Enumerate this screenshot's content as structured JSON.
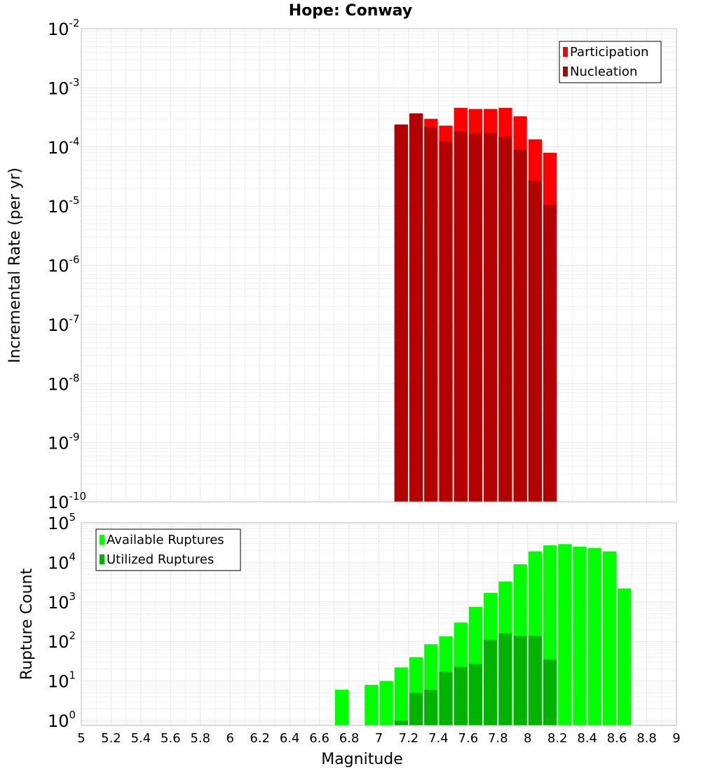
{
  "chart_data": [
    {
      "type": "bar",
      "title": "Hope: Conway",
      "xlabel": "",
      "ylabel": "Incremental Rate (per yr)",
      "y_scale": "log",
      "ylim": [
        1e-10,
        0.01
      ],
      "xlim": [
        5,
        9
      ],
      "grid": true,
      "legend_position": "top-right",
      "bar_width": 0.1,
      "colors": {
        "Participation": "#ff0000",
        "Nucleation": "#b30000"
      },
      "series": [
        {
          "name": "Participation",
          "x": [
            7.15,
            7.25,
            7.35,
            7.45,
            7.55,
            7.65,
            7.75,
            7.85,
            7.95,
            8.05,
            8.15
          ],
          "values": [
            0.00024,
            0.00037,
            0.0003,
            0.00023,
            0.00046,
            0.00044,
            0.00044,
            0.00046,
            0.00033,
            0.000135,
            8e-05
          ]
        },
        {
          "name": "Nucleation",
          "x": [
            7.15,
            7.25,
            7.35,
            7.45,
            7.55,
            7.65,
            7.75,
            7.85,
            7.95,
            8.05,
            8.15
          ],
          "values": [
            0.00024,
            0.00037,
            0.00022,
            0.000125,
            0.000185,
            0.00017,
            0.000175,
            0.00015,
            9e-05,
            2.7e-05,
            1.05e-05
          ]
        }
      ]
    },
    {
      "type": "bar",
      "title": "",
      "xlabel": "Magnitude",
      "ylabel": "Rupture Count",
      "y_scale": "log",
      "ylim": [
        0.75,
        100000
      ],
      "xlim": [
        5,
        9
      ],
      "xticks": [
        "5",
        "5.2",
        "5.4",
        "5.6",
        "5.8",
        "6",
        "6.2",
        "6.4",
        "6.6",
        "6.8",
        "7",
        "7.2",
        "7.4",
        "7.6",
        "7.8",
        "8",
        "8.2",
        "8.4",
        "8.6",
        "8.8",
        "9"
      ],
      "grid": true,
      "legend_position": "top-left",
      "bar_width": 0.1,
      "colors": {
        "Available Ruptures": "#00ff00",
        "Utilized Ruptures": "#00b300"
      },
      "series": [
        {
          "name": "Available Ruptures",
          "x": [
            6.75,
            6.95,
            7.05,
            7.15,
            7.25,
            7.35,
            7.45,
            7.55,
            7.65,
            7.75,
            7.85,
            7.95,
            8.05,
            8.15,
            8.25,
            8.35,
            8.45,
            8.55,
            8.65
          ],
          "values": [
            6,
            8,
            10,
            22,
            40,
            85,
            135,
            300,
            750,
            1700,
            3300,
            9000,
            19000,
            27000,
            29000,
            25000,
            23000,
            19000,
            2200
          ]
        },
        {
          "name": "Utilized Ruptures",
          "x": [
            7.15,
            7.25,
            7.35,
            7.45,
            7.55,
            7.65,
            7.75,
            7.85,
            7.95,
            8.05,
            8.15
          ],
          "values": [
            1,
            5,
            6,
            17,
            23,
            27,
            110,
            160,
            140,
            140,
            35
          ]
        }
      ]
    }
  ]
}
